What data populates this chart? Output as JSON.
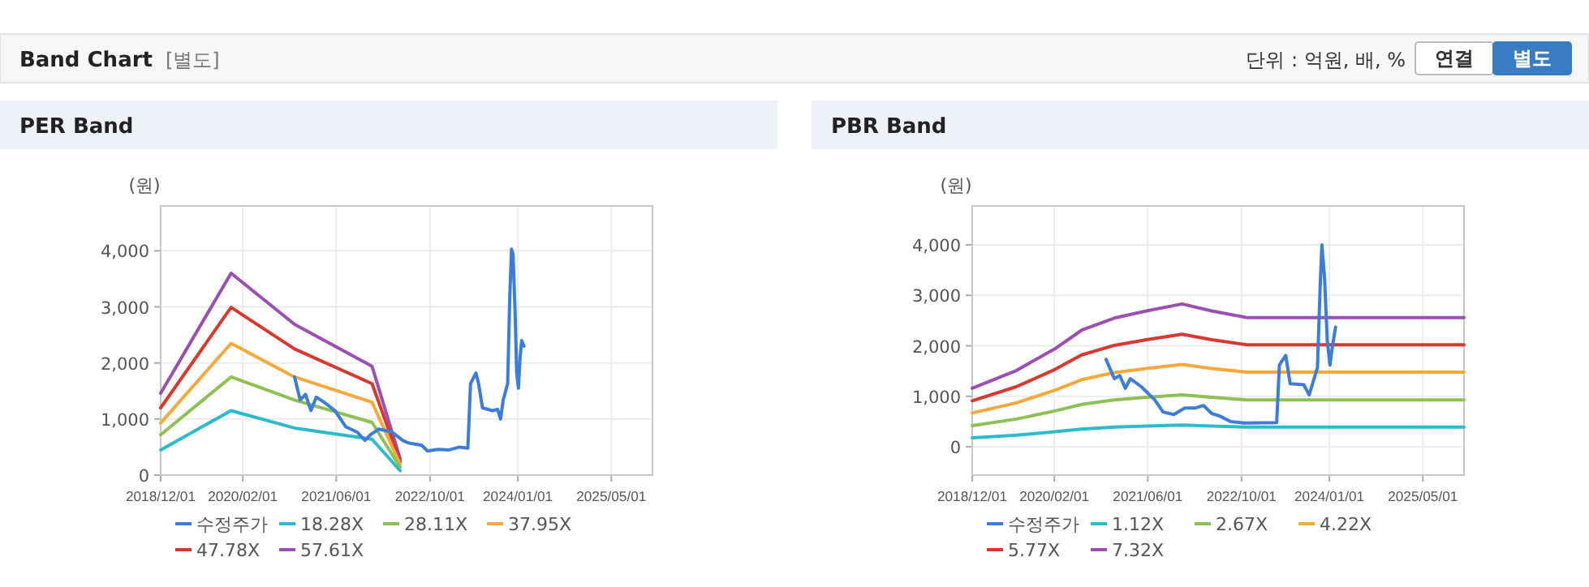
{
  "chart_data": [
    {
      "type": "other",
      "title": "Band Chart",
      "annotations": [
        "[별도]",
        "단위 : 억원, 배, %",
        "연결",
        "별도"
      ]
    },
    {
      "type": "line",
      "title": "PER Band",
      "ylabel": "(원)",
      "legend": "bottom",
      "grid": true,
      "line_style": "solid",
      "xlim": [
        "2018-12-01",
        "2025-12-01"
      ],
      "ylim": [
        0,
        4800
      ],
      "xticks": [
        {
          "value": "2018-12-01",
          "label": "2018/12/01"
        },
        {
          "value": "2020-02-01",
          "label": "2020/02/01"
        },
        {
          "value": "2021-06-01",
          "label": "2021/06/01"
        },
        {
          "value": "2022-10-01",
          "label": "2022/10/01"
        },
        {
          "value": "2024-01-01",
          "label": "2024/01/01"
        },
        {
          "value": "2025-05-01",
          "label": "2025/05/01"
        }
      ],
      "yticks": [
        0,
        {
          "value": 1000,
          "label": "1,000"
        },
        {
          "value": 2000,
          "label": "2,000"
        },
        {
          "value": 3000,
          "label": "3,000"
        },
        {
          "value": 4000,
          "label": "4,000"
        }
      ],
      "series": [
        {
          "name": "수정주가",
          "color": "#3b7dd8",
          "x": [
            "2020-10-27",
            "2020-11-25",
            "2020-12-23",
            "2021-01-20",
            "2021-02-17",
            "2021-03-30",
            "2021-05-25",
            "2021-07-21",
            "2021-09-16",
            "2021-10-28",
            "2021-11-26",
            "2022-01-07",
            "2022-03-17",
            "2022-05-12",
            "2022-06-10",
            "2022-08-20",
            "2022-09-18",
            "2022-11-13",
            "2023-01-09",
            "2023-03-04",
            "2023-04-16",
            "2023-04-30",
            "2023-05-28",
            "2023-06-11",
            "2023-07-01",
            "2023-08-21",
            "2023-09-18",
            "2023-10-03",
            "2023-10-17",
            "2023-11-09",
            "2023-11-20",
            "2023-11-29",
            "2023-12-07",
            "2023-12-18",
            "2023-12-26",
            "2024-01-04",
            "2024-01-13",
            "2024-01-21",
            "2024-02-02"
          ],
          "values": [
            1750,
            1340,
            1440,
            1150,
            1390,
            1300,
            1150,
            860,
            770,
            620,
            720,
            820,
            770,
            620,
            575,
            530,
            430,
            460,
            450,
            500,
            480,
            1630,
            1820,
            1630,
            1200,
            1150,
            1170,
            1000,
            1340,
            1630,
            3170,
            4030,
            3940,
            2880,
            1820,
            1550,
            2110,
            2400,
            2300
          ]
        },
        {
          "name": "18.28X",
          "color": "#2bbccc",
          "x": [
            "2018-12-01",
            "2019-12-02",
            "2020-10-27",
            "2021-12-04",
            "2022-04-29"
          ],
          "values": [
            450,
            1150,
            840,
            640,
            80
          ]
        },
        {
          "name": "28.11X",
          "color": "#8dc153",
          "x": [
            "2018-12-01",
            "2019-12-02",
            "2020-10-27",
            "2021-12-04",
            "2022-04-29"
          ],
          "values": [
            720,
            1750,
            1340,
            940,
            140
          ]
        },
        {
          "name": "37.95X",
          "color": "#f5a93a",
          "x": [
            "2018-12-01",
            "2019-12-02",
            "2020-10-27",
            "2021-12-04",
            "2022-04-29"
          ],
          "values": [
            930,
            2350,
            1750,
            1300,
            190
          ]
        },
        {
          "name": "47.78X",
          "color": "#d9382f",
          "x": [
            "2018-12-01",
            "2019-12-02",
            "2020-10-27",
            "2021-12-04",
            "2022-04-29"
          ],
          "values": [
            1200,
            2990,
            2250,
            1630,
            240
          ]
        },
        {
          "name": "57.61X",
          "color": "#9b4fb0",
          "x": [
            "2018-12-01",
            "2019-12-02",
            "2020-10-27",
            "2021-12-04",
            "2022-04-29"
          ],
          "values": [
            1460,
            3600,
            2690,
            1940,
            290
          ]
        }
      ]
    },
    {
      "type": "line",
      "title": "PBR Band",
      "ylabel": "(원)",
      "legend": "bottom",
      "grid": true,
      "line_style": "solid",
      "xlim": [
        "2018-12-01",
        "2025-12-01"
      ],
      "ylim": [
        -560,
        4770
      ],
      "xticks": [
        {
          "value": "2018-12-01",
          "label": "2018/12/01"
        },
        {
          "value": "2020-02-01",
          "label": "2020/02/01"
        },
        {
          "value": "2021-06-01",
          "label": "2021/06/01"
        },
        {
          "value": "2022-10-01",
          "label": "2022/10/01"
        },
        {
          "value": "2024-01-01",
          "label": "2024/01/01"
        },
        {
          "value": "2025-05-01",
          "label": "2025/05/01"
        }
      ],
      "yticks": [
        0,
        {
          "value": 1000,
          "label": "1,000"
        },
        {
          "value": 2000,
          "label": "2,000"
        },
        {
          "value": 3000,
          "label": "3,000"
        },
        {
          "value": 4000,
          "label": "4,000"
        }
      ],
      "series": [
        {
          "name": "수정주가",
          "color": "#3b7dd8",
          "x": [
            "2020-10-27",
            "2020-12-09",
            "2021-01-06",
            "2021-02-04",
            "2021-03-02",
            "2021-04-28",
            "2021-07-07",
            "2021-08-19",
            "2021-10-14",
            "2021-12-10",
            "2022-02-05",
            "2022-03-17",
            "2022-04-29",
            "2022-06-10",
            "2022-08-06",
            "2022-10-15",
            "2023-04-02",
            "2023-04-16",
            "2023-05-19",
            "2023-06-11",
            "2023-08-21",
            "2023-09-18",
            "2023-10-31",
            "2023-11-14",
            "2023-11-23",
            "2023-12-07",
            "2023-12-21",
            "2024-01-04",
            "2024-01-15",
            "2024-02-02"
          ],
          "values": [
            1730,
            1350,
            1410,
            1160,
            1350,
            1190,
            930,
            690,
            640,
            770,
            770,
            820,
            660,
            610,
            500,
            470,
            480,
            1620,
            1810,
            1250,
            1230,
            1030,
            1570,
            3170,
            4000,
            3330,
            2100,
            1620,
            1940,
            2370
          ]
        },
        {
          "name": "1.12X",
          "color": "#2bbccc",
          "x": [
            "2018-12-01",
            "2019-07-18",
            "2020-02-03",
            "2020-06-22",
            "2020-12-09",
            "2021-05-25",
            "2021-11-26",
            "2022-04-29",
            "2022-10-30",
            "2025-12-01"
          ],
          "values": [
            180,
            230,
            300,
            350,
            390,
            410,
            430,
            410,
            390,
            390
          ]
        },
        {
          "name": "2.67X",
          "color": "#8dc153",
          "x": [
            "2018-12-01",
            "2019-07-18",
            "2020-02-03",
            "2020-06-22",
            "2020-12-09",
            "2021-05-25",
            "2021-11-26",
            "2022-04-29",
            "2022-10-30",
            "2025-12-01"
          ],
          "values": [
            420,
            550,
            710,
            840,
            930,
            980,
            1030,
            980,
            930,
            930
          ]
        },
        {
          "name": "4.22X",
          "color": "#f5a93a",
          "x": [
            "2018-12-01",
            "2019-07-18",
            "2020-02-03",
            "2020-06-22",
            "2020-12-09",
            "2021-05-25",
            "2021-11-26",
            "2022-04-29",
            "2022-10-30",
            "2025-12-01"
          ],
          "values": [
            670,
            870,
            1120,
            1330,
            1470,
            1550,
            1630,
            1550,
            1480,
            1480
          ]
        },
        {
          "name": "5.77X",
          "color": "#d9382f",
          "x": [
            "2018-12-01",
            "2019-07-18",
            "2020-02-03",
            "2020-06-22",
            "2020-12-09",
            "2021-05-25",
            "2021-11-26",
            "2022-04-29",
            "2022-10-30",
            "2025-12-01"
          ],
          "values": [
            910,
            1190,
            1530,
            1820,
            2010,
            2120,
            2230,
            2120,
            2020,
            2020
          ]
        },
        {
          "name": "7.32X",
          "color": "#9b4fb0",
          "x": [
            "2018-12-01",
            "2019-07-18",
            "2020-02-03",
            "2020-06-22",
            "2020-12-09",
            "2021-05-25",
            "2021-11-26",
            "2022-04-29",
            "2022-10-30",
            "2025-12-01"
          ],
          "values": [
            1160,
            1510,
            1940,
            2310,
            2550,
            2690,
            2830,
            2690,
            2560,
            2560
          ]
        }
      ]
    }
  ]
}
